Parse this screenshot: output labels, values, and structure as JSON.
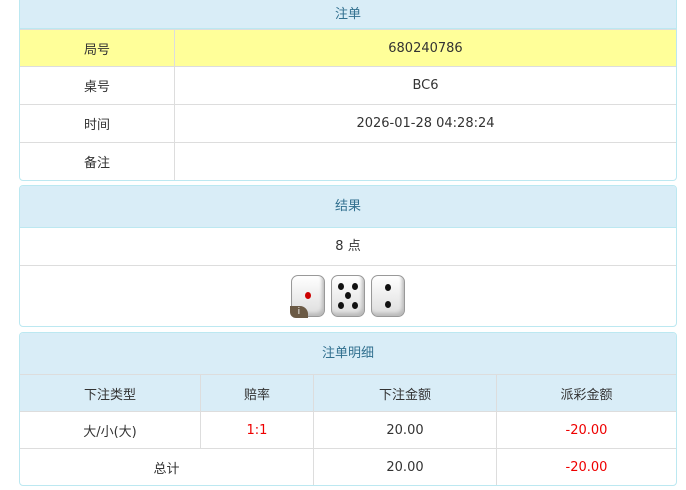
{
  "order": {
    "title": "注单",
    "rows": [
      {
        "label": "局号",
        "value": "680240786"
      },
      {
        "label": "桌号",
        "value": "BC6"
      },
      {
        "label": "时间",
        "value": "2026-01-28 04:28:24"
      },
      {
        "label": "备注",
        "value": ""
      }
    ]
  },
  "result": {
    "title": "结果",
    "points": "8 点",
    "dice": [
      1,
      5,
      2
    ],
    "info_badge": "i"
  },
  "detail": {
    "title": "注单明细",
    "headers": [
      "下注类型",
      "赔率",
      "下注金额",
      "派彩金额"
    ],
    "rows": [
      {
        "type": "大/小(大)",
        "odds": "1:1",
        "amount": "20.00",
        "payout": "-20.00"
      }
    ],
    "total": {
      "label": "总计",
      "amount": "20.00",
      "payout": "-20.00"
    }
  },
  "colors": {
    "header_bg": "#d9edf7",
    "highlight": "#ffff99",
    "negative": "#e00000"
  }
}
